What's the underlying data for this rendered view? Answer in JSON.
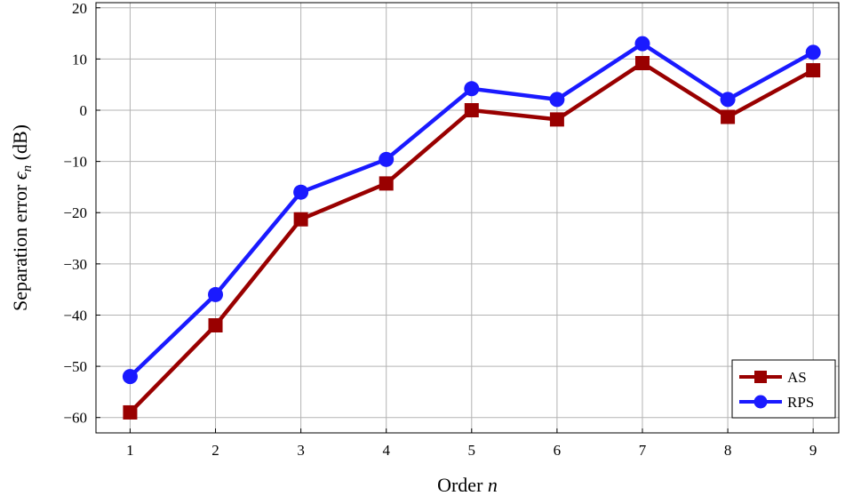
{
  "chart_data": {
    "type": "line",
    "x": [
      1,
      2,
      3,
      4,
      5,
      6,
      7,
      8,
      9
    ],
    "series": [
      {
        "name": "AS",
        "color": "#990000",
        "marker": "square",
        "values": [
          -59,
          -42,
          -21.3,
          -14.3,
          0,
          -1.8,
          9.2,
          -1.3,
          7.8
        ]
      },
      {
        "name": "RPS",
        "color": "#1a1aff",
        "marker": "circle",
        "values": [
          -52,
          -36,
          -16,
          -9.6,
          4.2,
          2.1,
          13,
          2.1,
          11.3
        ]
      }
    ],
    "xlabel": "Order",
    "xlabel_var": "n",
    "ylabel": "Separation error",
    "ylabel_var": "ϵ",
    "ylabel_sub": "n",
    "ylabel_unit": "(dB)",
    "xlim": [
      0.6,
      9.3
    ],
    "ylim": [
      -63,
      21
    ],
    "xticks": [
      1,
      2,
      3,
      4,
      5,
      6,
      7,
      8,
      9
    ],
    "yticks": [
      20,
      10,
      0,
      -10,
      -20,
      -30,
      -40,
      -50,
      -60
    ],
    "ytick_labels": [
      "20",
      "10",
      "0",
      "−10",
      "−20",
      "−30",
      "−40",
      "−50",
      "−60"
    ],
    "grid": true,
    "legend_position": "bottom-right"
  }
}
